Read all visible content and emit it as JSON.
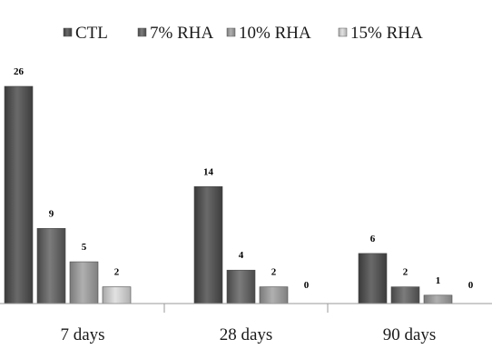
{
  "chart_data": {
    "type": "bar",
    "categories": [
      "7 days",
      "28 days",
      "90 days"
    ],
    "series": [
      {
        "name": "CTL",
        "values": [
          26,
          14,
          6
        ],
        "color": "#595959"
      },
      {
        "name": "7% RHA",
        "values": [
          9,
          4,
          2
        ],
        "color": "#6e6e6e"
      },
      {
        "name": "10% RHA",
        "values": [
          5,
          2,
          1
        ],
        "color": "#9a9a9a"
      },
      {
        "name": "15% RHA",
        "values": [
          2,
          0,
          0
        ],
        "color": "#c8c8c8"
      }
    ],
    "data_labels": true,
    "legend_position": "top",
    "grid": false,
    "ylim": [
      0,
      27.3
    ],
    "title": "",
    "xlabel": "",
    "ylabel": ""
  }
}
